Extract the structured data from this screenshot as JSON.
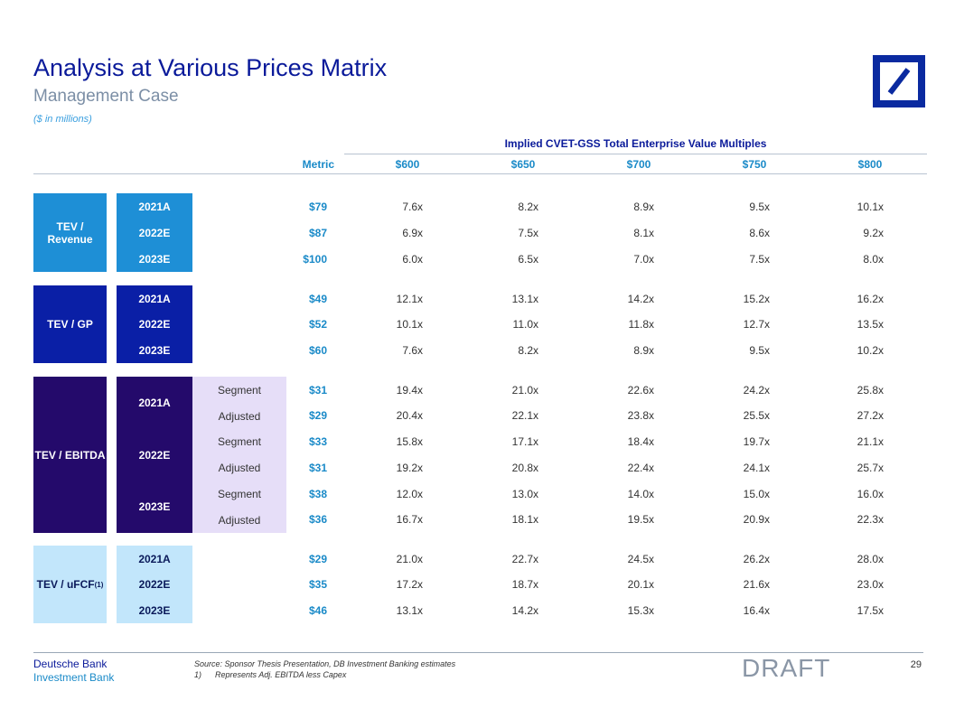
{
  "header": {
    "title": "Analysis at Various Prices Matrix",
    "subtitle": "Management Case",
    "units": "($ in millions)"
  },
  "table": {
    "implied_header": "Implied CVET-GSS Total Enterprise Value Multiples",
    "metric_header": "Metric",
    "price_headers": [
      "$600",
      "$650",
      "$700",
      "$750",
      "$800"
    ],
    "rev": {
      "label": "TEV / Revenue",
      "rows": [
        {
          "year": "2021A",
          "metric": "$79",
          "values": [
            "7.6x",
            "8.2x",
            "8.9x",
            "9.5x",
            "10.1x"
          ]
        },
        {
          "year": "2022E",
          "metric": "$87",
          "values": [
            "6.9x",
            "7.5x",
            "8.1x",
            "8.6x",
            "9.2x"
          ]
        },
        {
          "year": "2023E",
          "metric": "$100",
          "values": [
            "6.0x",
            "6.5x",
            "7.0x",
            "7.5x",
            "8.0x"
          ]
        }
      ]
    },
    "gp": {
      "label": "TEV / GP",
      "rows": [
        {
          "year": "2021A",
          "metric": "$49",
          "values": [
            "12.1x",
            "13.1x",
            "14.2x",
            "15.2x",
            "16.2x"
          ]
        },
        {
          "year": "2022E",
          "metric": "$52",
          "values": [
            "10.1x",
            "11.0x",
            "11.8x",
            "12.7x",
            "13.5x"
          ]
        },
        {
          "year": "2023E",
          "metric": "$60",
          "values": [
            "7.6x",
            "8.2x",
            "8.9x",
            "9.5x",
            "10.2x"
          ]
        }
      ]
    },
    "ebitda": {
      "label": "TEV / EBITDA",
      "years": [
        "2021A",
        "2022E",
        "2023E"
      ],
      "rows": [
        {
          "type": "Segment",
          "metric": "$31",
          "values": [
            "19.4x",
            "21.0x",
            "22.6x",
            "24.2x",
            "25.8x"
          ]
        },
        {
          "type": "Adjusted",
          "metric": "$29",
          "values": [
            "20.4x",
            "22.1x",
            "23.8x",
            "25.5x",
            "27.2x"
          ]
        },
        {
          "type": "Segment",
          "metric": "$33",
          "values": [
            "15.8x",
            "17.1x",
            "18.4x",
            "19.7x",
            "21.1x"
          ]
        },
        {
          "type": "Adjusted",
          "metric": "$31",
          "values": [
            "19.2x",
            "20.8x",
            "22.4x",
            "24.1x",
            "25.7x"
          ]
        },
        {
          "type": "Segment",
          "metric": "$38",
          "values": [
            "12.0x",
            "13.0x",
            "14.0x",
            "15.0x",
            "16.0x"
          ]
        },
        {
          "type": "Adjusted",
          "metric": "$36",
          "values": [
            "16.7x",
            "18.1x",
            "19.5x",
            "20.9x",
            "22.3x"
          ]
        }
      ]
    },
    "fcf": {
      "label": "TEV / uFCF",
      "label_sup": "(1)",
      "rows": [
        {
          "year": "2021A",
          "metric": "$29",
          "values": [
            "21.0x",
            "22.7x",
            "24.5x",
            "26.2x",
            "28.0x"
          ]
        },
        {
          "year": "2022E",
          "metric": "$35",
          "values": [
            "17.2x",
            "18.7x",
            "20.1x",
            "21.6x",
            "23.0x"
          ]
        },
        {
          "year": "2023E",
          "metric": "$46",
          "values": [
            "13.1x",
            "14.2x",
            "15.3x",
            "16.4x",
            "17.5x"
          ]
        }
      ]
    }
  },
  "footer": {
    "brand_line1": "Deutsche Bank",
    "brand_line2": "Investment Bank",
    "source": "Source: Sponsor Thesis Presentation, DB Investment Banking estimates",
    "note": "1)      Represents Adj. EBITDA less Capex",
    "draft": "DRAFT",
    "page": "29"
  },
  "colors": {
    "revenue": "#1e8fd6",
    "gp": "#0a1fa6",
    "ebitda": "#240a6b",
    "fcf": "#c2e6fb"
  }
}
